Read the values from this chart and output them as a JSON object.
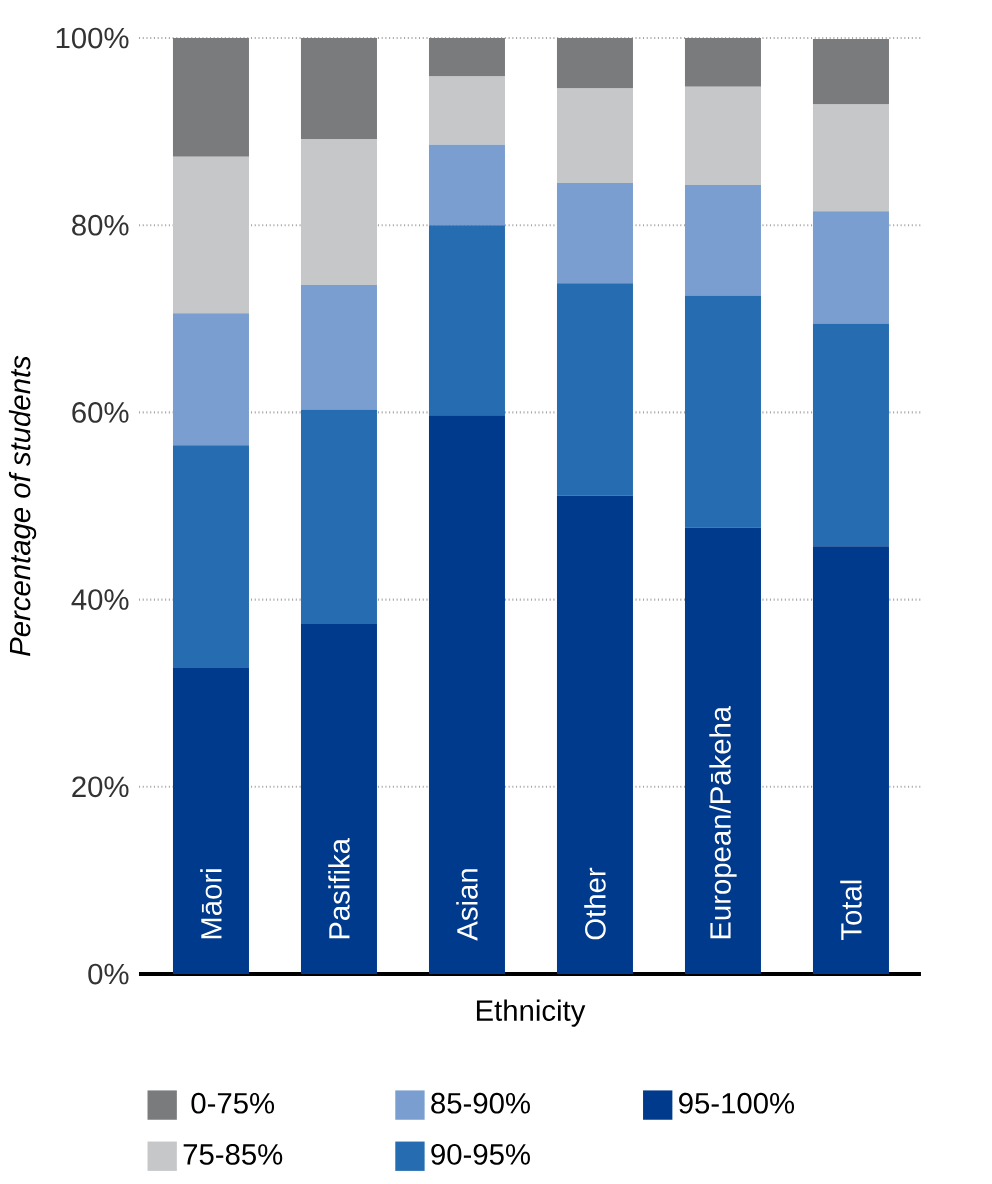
{
  "chart_data": {
    "type": "bar",
    "stacked": true,
    "xlabel": "Ethnicity",
    "ylabel": "Percentage of students",
    "categories": [
      "Māori",
      "Pasifika",
      "Asian",
      "Other",
      "European/Pākeha",
      "Total"
    ],
    "series": [
      {
        "name": "95-100%",
        "color": "#003a8c",
        "values": [
          32.7,
          37.4,
          59.7,
          51.1,
          47.7,
          45.7
        ]
      },
      {
        "name": "90-95%",
        "color": "#256db0",
        "values": [
          23.8,
          22.9,
          20.3,
          22.7,
          24.8,
          23.8
        ]
      },
      {
        "name": "85-90%",
        "color": "#7a9ecf",
        "values": [
          14.1,
          13.3,
          8.6,
          10.7,
          11.8,
          12.0
        ]
      },
      {
        "name": "75-85%",
        "color": "#c6c7c9",
        "values": [
          16.7,
          15.6,
          7.3,
          10.1,
          10.5,
          11.4
        ]
      },
      {
        "name": "0-75%",
        "color": "#7a7b7d",
        "values": [
          12.7,
          10.8,
          4.1,
          5.4,
          5.2,
          7.0
        ]
      }
    ],
    "ylim": [
      0,
      100
    ],
    "yticks": [
      {
        "value": 0,
        "label": "0%"
      },
      {
        "value": 20,
        "label": "20%"
      },
      {
        "value": 40,
        "label": "40%"
      },
      {
        "value": 60,
        "label": "60%"
      },
      {
        "value": 80,
        "label": "80%"
      },
      {
        "value": 100,
        "label": "100%"
      }
    ],
    "grid": "y",
    "legend": "bottom"
  }
}
